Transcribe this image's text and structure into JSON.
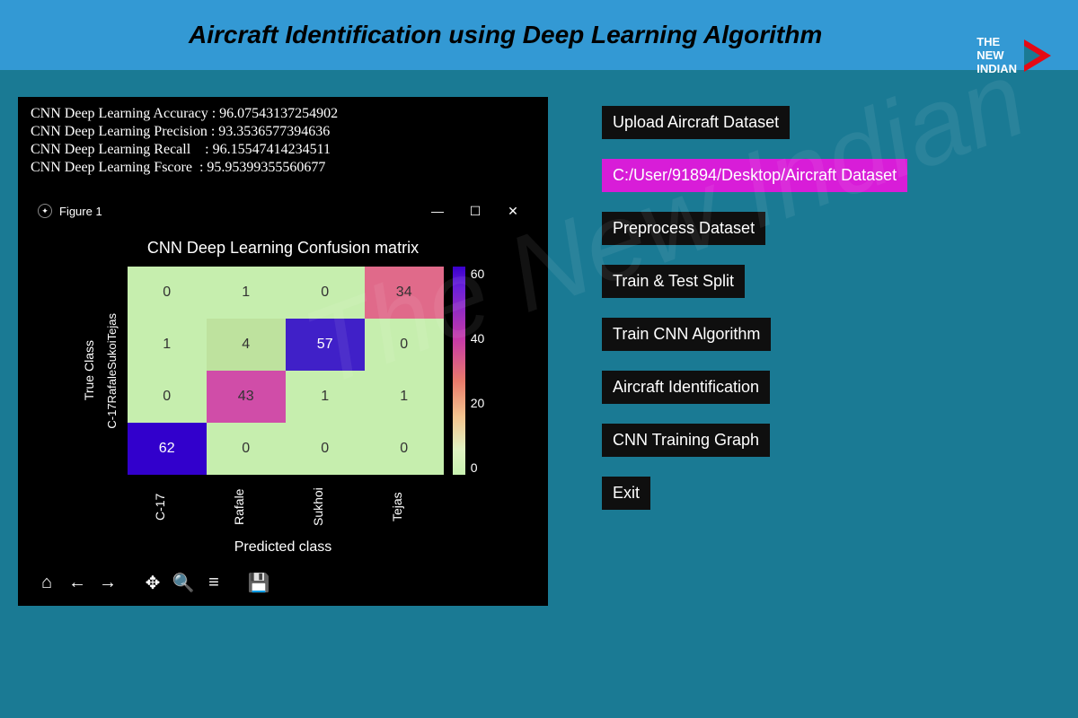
{
  "header": {
    "title": "Aircraft Identification using Deep Learning Algorithm"
  },
  "logo": {
    "line1": "THE",
    "line2": "NEW",
    "line3": "INDIAN"
  },
  "metrics": {
    "accuracy_label": "CNN Deep Learning Accuracy",
    "accuracy_value": "96.07543137254902",
    "precision_label": "CNN Deep Learning Precision",
    "precision_value": "93.3536577394636",
    "recall_label": "CNN Deep Learning Recall",
    "recall_value": "96.15547414234511",
    "fscore_label": "CNN Deep Learning Fscore",
    "fscore_value": "95.95399355560677"
  },
  "figure": {
    "window_title": "Figure 1",
    "plot_title": "CNN Deep Learning Confusion matrix",
    "xlabel": "Predicted class",
    "ylabel": "True Class",
    "ytick_concat": "C-17RafaleSukoiTejas",
    "xticks": [
      "C-17",
      "Rafale",
      "Sukhoi",
      "Tejas"
    ],
    "matrix": [
      [
        0,
        1,
        0,
        34
      ],
      [
        1,
        4,
        57,
        0
      ],
      [
        0,
        43,
        1,
        1
      ],
      [
        62,
        0,
        0,
        0
      ]
    ],
    "cell_colors": [
      [
        "#c6eeae",
        "#c6eeae",
        "#c6eeae",
        "#e06a8a"
      ],
      [
        "#c6eeae",
        "#bee29e",
        "#4020c8",
        "#c6eeae"
      ],
      [
        "#c6eeae",
        "#d04da8",
        "#c6eeae",
        "#c6eeae"
      ],
      [
        "#3200cc",
        "#c6eeae",
        "#c6eeae",
        "#c6eeae"
      ]
    ],
    "cell_text_colors": [
      [
        "#333",
        "#333",
        "#333",
        "#333"
      ],
      [
        "#333",
        "#333",
        "#fff",
        "#333"
      ],
      [
        "#333",
        "#333",
        "#333",
        "#333"
      ],
      [
        "#fff",
        "#333",
        "#333",
        "#333"
      ]
    ],
    "colorbar_ticks": [
      "60",
      "40",
      "20",
      "0"
    ]
  },
  "buttons": {
    "upload": "Upload Aircraft Dataset",
    "path": "C:/User/91894/Desktop/Aircraft Dataset",
    "preprocess": "Preprocess Dataset",
    "split": "Train & Test Split",
    "train": "Train CNN Algorithm",
    "identify": "Aircraft Identification",
    "graph": "CNN Training Graph",
    "exit": "Exit"
  },
  "watermark": "The New Indian"
}
